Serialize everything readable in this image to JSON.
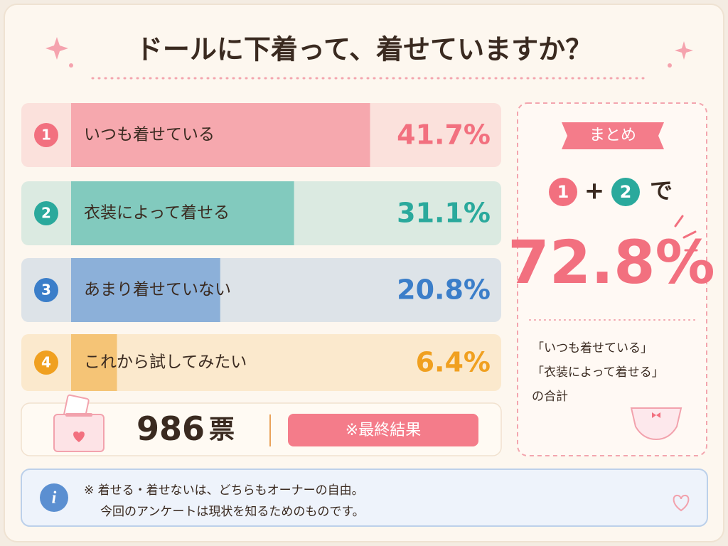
{
  "chart_data": {
    "type": "bar",
    "orientation": "horizontal",
    "title": "ドールに下着って、着せていますか？",
    "ranks": [
      "1",
      "2",
      "3",
      "4"
    ],
    "categories": [
      "いつも着せている",
      "衣装によって着せる",
      "あまり着せていない",
      "これから試してみたい"
    ],
    "values": [
      41.7,
      31.1,
      20.8,
      6.4
    ],
    "value_labels": [
      "41.7%",
      "31.1%",
      "20.8%",
      "6.4%"
    ],
    "colors": [
      "#f2707f",
      "#2aa99c",
      "#3b7ec9",
      "#f0a020"
    ],
    "xlim": [
      0,
      60
    ],
    "votes": 986,
    "votes_unit": "票",
    "status": "※最終結果",
    "summary": {
      "badge": "まとめ",
      "first": "1",
      "plus": "+",
      "second": "2",
      "particle": "で",
      "total_label": "72.8%",
      "lines": [
        "「いつも着せている」",
        "「衣装によって着せる」",
        "の合計"
      ]
    },
    "note": [
      "※ 着せる・着せないは、どちらもオーナーの自由。",
      "今回のアンケートは現状を知るためのものです。"
    ]
  }
}
